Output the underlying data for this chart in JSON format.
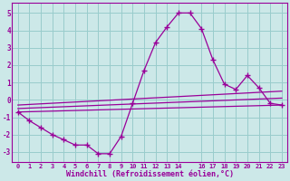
{
  "xlabel": "Windchill (Refroidissement éolien,°C)",
  "bg_color": "#cce8e8",
  "line_color": "#990099",
  "grid_color": "#99cccc",
  "xlim": [
    -0.5,
    23.5
  ],
  "ylim": [
    -3.6,
    5.6
  ],
  "xticks": [
    0,
    1,
    2,
    3,
    4,
    5,
    6,
    7,
    8,
    9,
    10,
    11,
    12,
    13,
    14,
    16,
    17,
    18,
    19,
    20,
    21,
    22,
    23
  ],
  "yticks": [
    -3,
    -2,
    -1,
    0,
    1,
    2,
    3,
    4,
    5
  ],
  "curve_x": [
    0,
    1,
    2,
    3,
    4,
    5,
    6,
    7,
    8,
    9,
    10,
    11,
    12,
    13,
    14,
    15,
    16,
    17,
    18,
    19,
    20,
    21,
    22,
    23
  ],
  "curve_y": [
    -0.7,
    -1.2,
    -1.6,
    -2.0,
    -2.3,
    -2.6,
    -2.6,
    -3.1,
    -3.1,
    -2.1,
    -0.2,
    1.7,
    3.3,
    4.2,
    5.0,
    5.0,
    4.1,
    2.3,
    0.9,
    0.6,
    1.4,
    0.7,
    -0.2,
    -0.3
  ],
  "line1_x": [
    0,
    23
  ],
  "line1_y": [
    -0.7,
    -0.3
  ],
  "line2_x": [
    0,
    23
  ],
  "line2_y": [
    -0.5,
    0.1
  ],
  "line3_x": [
    0,
    23
  ],
  "line3_y": [
    -0.3,
    0.5
  ]
}
